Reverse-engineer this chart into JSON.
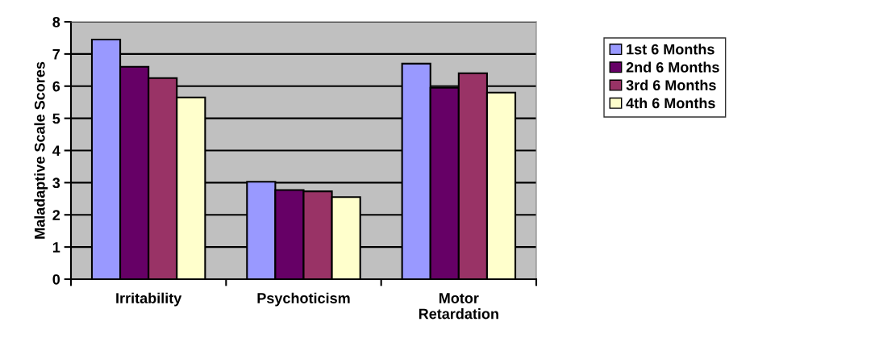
{
  "chart_data": {
    "type": "bar",
    "ylabel": "Maladaptive Scale Scores",
    "categories": [
      "Irritability",
      "Psychoticism",
      "Motor Retardation"
    ],
    "series": [
      {
        "name": "1st 6 Months",
        "color": "#9999ff",
        "values": [
          7.45,
          3.03,
          6.7
        ]
      },
      {
        "name": "2nd 6 Months",
        "color": "#660066",
        "values": [
          6.6,
          2.77,
          5.95
        ]
      },
      {
        "name": "3rd 6 Months",
        "color": "#993366",
        "values": [
          6.25,
          2.73,
          6.4
        ]
      },
      {
        "name": "4th 6 Months",
        "color": "#ffffcc",
        "values": [
          5.65,
          2.55,
          5.8
        ]
      }
    ],
    "ylim": [
      0,
      8
    ],
    "yticks": [
      0,
      1,
      2,
      3,
      4,
      5,
      6,
      7,
      8
    ],
    "grid": "y",
    "legend": "right"
  }
}
